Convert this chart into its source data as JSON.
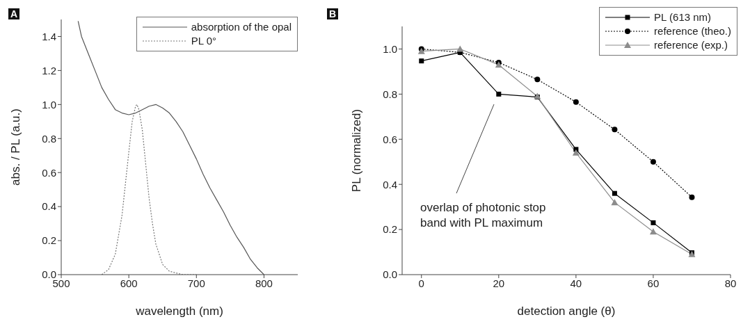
{
  "chart_data": [
    {
      "type": "line",
      "title": "A",
      "xlabel": "wavelength (nm)",
      "ylabel": "abs. / PL (a.u.)",
      "xlim": [
        500,
        850
      ],
      "xticks": [
        500,
        600,
        700,
        800
      ],
      "ylim": [
        0,
        1.5
      ],
      "yticks": [
        {
          "value": 0,
          "label": "0.0"
        },
        {
          "value": 0.2,
          "label": "0.2"
        },
        {
          "value": 0.4,
          "label": "0.4"
        },
        {
          "value": 0.6,
          "label": "0.6"
        },
        {
          "value": 0.8,
          "label": "0.8"
        },
        {
          "value": 1,
          "label": "1.0"
        },
        {
          "value": 1.2,
          "label": "1.2"
        },
        {
          "value": 1.4,
          "label": "1.4"
        }
      ],
      "grid": false,
      "legend": "top right",
      "marker": "none",
      "series": [
        {
          "name": "absorption of the opal",
          "color": "#555555",
          "line_style": "solid",
          "x": [
            525,
            530,
            540,
            550,
            560,
            570,
            580,
            590,
            600,
            610,
            620,
            630,
            640,
            650,
            660,
            670,
            680,
            690,
            700,
            710,
            720,
            730,
            740,
            750,
            760,
            770,
            780,
            790,
            800
          ],
          "values": [
            1.49,
            1.4,
            1.3,
            1.2,
            1.1,
            1.03,
            0.97,
            0.95,
            0.94,
            0.95,
            0.97,
            0.99,
            1.0,
            0.98,
            0.95,
            0.9,
            0.84,
            0.76,
            0.68,
            0.59,
            0.51,
            0.44,
            0.37,
            0.29,
            0.22,
            0.16,
            0.09,
            0.04,
            0.0
          ]
        },
        {
          "name": "PL 0°",
          "color": "#777777",
          "line_style": "dotted",
          "x": [
            560,
            570,
            580,
            590,
            600,
            605,
            610,
            612,
            615,
            620,
            625,
            630,
            635,
            640,
            650,
            660,
            670,
            680,
            700
          ],
          "values": [
            0.0,
            0.03,
            0.12,
            0.35,
            0.72,
            0.9,
            0.99,
            1.0,
            0.97,
            0.85,
            0.65,
            0.45,
            0.3,
            0.18,
            0.06,
            0.02,
            0.01,
            0.0,
            0.0
          ]
        }
      ]
    },
    {
      "type": "line",
      "title": "B",
      "xlabel": "detection angle (θ)",
      "ylabel": "PL (normalized)",
      "xlim": [
        -5,
        80
      ],
      "xticks": [
        0,
        20,
        40,
        60,
        80
      ],
      "ylim": [
        0,
        1.1
      ],
      "yticks": [
        {
          "value": 0,
          "label": "0.0"
        },
        {
          "value": 0.2,
          "label": "0.2"
        },
        {
          "value": 0.4,
          "label": "0.4"
        },
        {
          "value": 0.6,
          "label": "0.6"
        },
        {
          "value": 0.8,
          "label": "0.8"
        },
        {
          "value": 1,
          "label": "1.0"
        }
      ],
      "grid": false,
      "legend": "top right",
      "annotations": [
        "overlap of photonic stop band with PL maximum"
      ],
      "series": [
        {
          "name": "PL (613 nm)",
          "color": "#000000",
          "marker": "square",
          "line_style": "solid",
          "x": [
            0,
            10,
            20,
            30,
            40,
            50,
            60,
            70
          ],
          "values": [
            0.947,
            0.985,
            0.8,
            0.787,
            0.555,
            0.36,
            0.23,
            0.097
          ]
        },
        {
          "name": "reference (theo.)",
          "color": "#000000",
          "marker": "circle",
          "line_style": "dotted",
          "x": [
            0,
            10,
            20,
            30,
            40,
            50,
            60,
            70
          ],
          "values": [
            1.0,
            0.985,
            0.94,
            0.865,
            0.765,
            0.643,
            0.5,
            0.343
          ]
        },
        {
          "name": "reference (exp.)",
          "color": "#8c8c8c",
          "marker": "triangle",
          "line_style": "solid",
          "x": [
            0,
            10,
            20,
            30,
            40,
            50,
            60,
            70
          ],
          "values": [
            0.99,
            1.0,
            0.93,
            0.79,
            0.54,
            0.32,
            0.19,
            0.09
          ]
        }
      ]
    }
  ]
}
